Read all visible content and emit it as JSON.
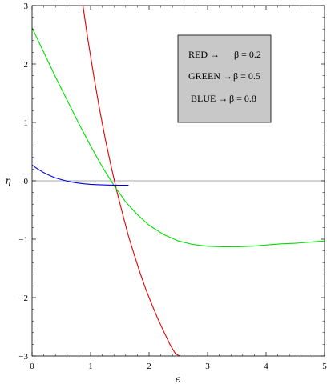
{
  "chart_data": {
    "type": "line",
    "xlabel": "ϵ",
    "ylabel": "η",
    "xlim": [
      0,
      5
    ],
    "ylim": [
      -3,
      3
    ],
    "x_ticks": [
      "0",
      "1",
      "2",
      "3",
      "4",
      "5"
    ],
    "y_ticks": [
      "3",
      "2",
      "1",
      "0",
      "−1",
      "−2",
      "−3"
    ],
    "grid": false,
    "legend_position": "top-right",
    "legend": [
      {
        "label": "RED →",
        "value": "β = 0.2"
      },
      {
        "label": "GREEN →",
        "value": "β = 0.5"
      },
      {
        "label": "BLUE →",
        "value": "β = 0.8"
      }
    ],
    "series": [
      {
        "color": "#e00000",
        "x": [
          0.87,
          0.95,
          1.05,
          1.15,
          1.25,
          1.35,
          1.45,
          1.55,
          1.65,
          1.75,
          1.85,
          1.95,
          2.05,
          2.15,
          2.25,
          2.35,
          2.45,
          2.52
        ],
        "y": [
          3.0,
          2.45,
          1.82,
          1.25,
          0.72,
          0.25,
          -0.18,
          -0.58,
          -0.95,
          -1.28,
          -1.59,
          -1.87,
          -2.12,
          -2.36,
          -2.58,
          -2.79,
          -2.96,
          -3.0
        ]
      },
      {
        "color": "#00e000",
        "x": [
          0.0,
          0.2,
          0.4,
          0.6,
          0.8,
          1.0,
          1.2,
          1.4,
          1.6,
          1.8,
          2.0,
          2.25,
          2.5,
          2.75,
          3.0,
          3.25,
          3.5,
          3.75,
          4.0,
          4.25,
          4.5,
          4.75,
          5.0
        ],
        "y": [
          2.62,
          2.2,
          1.78,
          1.38,
          0.98,
          0.6,
          0.24,
          -0.08,
          -0.36,
          -0.58,
          -0.76,
          -0.92,
          -1.03,
          -1.09,
          -1.12,
          -1.13,
          -1.13,
          -1.12,
          -1.1,
          -1.08,
          -1.07,
          -1.05,
          -1.03
        ]
      },
      {
        "color": "#0000e0",
        "x": [
          0.0,
          0.1,
          0.2,
          0.3,
          0.4,
          0.5,
          0.6,
          0.7,
          0.8,
          0.9,
          1.0,
          1.1,
          1.2,
          1.3,
          1.4,
          1.5,
          1.6,
          1.65
        ],
        "y": [
          0.27,
          0.2,
          0.14,
          0.09,
          0.05,
          0.02,
          -0.005,
          -0.025,
          -0.04,
          -0.052,
          -0.06,
          -0.066,
          -0.07,
          -0.073,
          -0.074,
          -0.075,
          -0.075,
          -0.075
        ]
      }
    ]
  }
}
